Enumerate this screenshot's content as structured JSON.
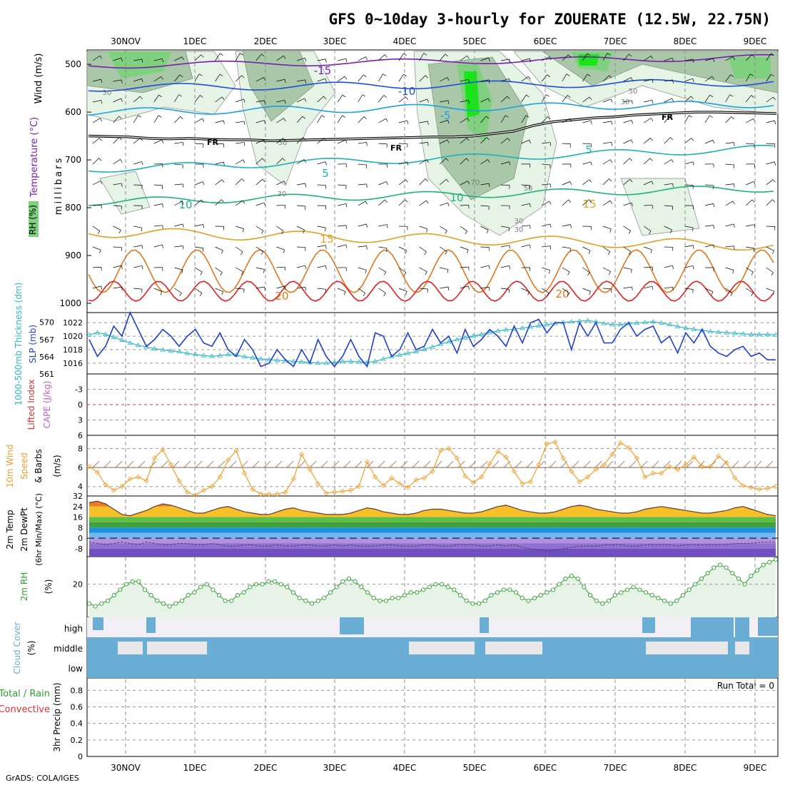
{
  "title": "GFS 0~10day 3-hourly for ZOUERATE (12.5W, 22.75N)",
  "credit": "GrADS: COLA/IGES",
  "run_total_label": "Run Total = 0",
  "colors": {
    "temp_m15": "#7a1fb0",
    "temp_m10": "#1f4fd6",
    "temp_m5": "#1f9fe0",
    "temp_5": "#1fb0b8",
    "temp_10": "#1fb080",
    "temp_15": "#e0a020",
    "temp_20": "#e07820",
    "temp_25": "#e02020",
    "freezing": "#000000",
    "rh_light": "#e6f4e6",
    "rh_mid": "#a8c8a8",
    "rh_high": "#7fd07f",
    "rh_max": "#19e619",
    "slp": "#1f3fd0",
    "thickness": "#2fb8c8",
    "wind10m": "#f0a030",
    "temp_band_warm": "#f0a030",
    "dewpoint": "#8a6a9a",
    "rh2m": "#2f9f2f",
    "cloud": "#6aaed6",
    "cloud_bg": "#e8e8e8"
  },
  "chart_data": [
    {
      "panel": "upper-air",
      "type": "heatmap",
      "x_tick_labels": [
        "30NOV",
        "1DEC",
        "2DEC",
        "3DEC",
        "4DEC",
        "5DEC",
        "6DEC",
        "7DEC",
        "8DEC",
        "9DEC"
      ],
      "ylabel": [
        "Wind (m/s)",
        "Temperature (°C)",
        "RH (%)",
        "millibars"
      ],
      "y_ticks": [
        500,
        600,
        700,
        800,
        900,
        1000
      ],
      "ylim": [
        1000,
        470
      ],
      "temperature_contour_labels": [
        "-15",
        "-10",
        "-5",
        "FR",
        "FR",
        "FR",
        "5",
        "5",
        "10",
        "10",
        "15",
        "15",
        "20",
        "20"
      ],
      "rh_contour_labels": [
        "30",
        "30",
        "30",
        "30",
        "50",
        "50",
        "70",
        "30",
        "30"
      ],
      "freezing_level_mb": [
        650,
        651,
        652,
        655,
        656,
        655,
        657,
        658,
        658,
        660,
        659,
        658,
        657,
        656,
        655,
        654,
        653,
        652,
        652,
        650,
        645,
        640,
        628,
        620,
        616,
        612,
        610,
        606,
        604,
        602,
        600,
        600,
        601,
        602,
        603
      ]
    },
    {
      "panel": "slp-thickness",
      "type": "line",
      "ylabel_left": "1000-500mb Thickness (dm)",
      "ylabel_right": "SLP (mb)",
      "thickness_ticks": [
        "570",
        "567",
        "564",
        "561"
      ],
      "slp_ticks": [
        "1022",
        "1020",
        "1018",
        "1016"
      ],
      "series": [
        {
          "name": "SLP (mb)",
          "values": [
            1019.5,
            1017,
            1018.5,
            1021.5,
            1020,
            1023.5,
            1021,
            1018.5,
            1019.5,
            1021,
            1020,
            1018.5,
            1020,
            1021,
            1019,
            1018.5,
            1020.5,
            1018,
            1017,
            1019.5,
            1018,
            1015.5,
            1016,
            1018,
            1016.5,
            1015.5,
            1018,
            1016,
            1019.5,
            1017,
            1015.5,
            1017,
            1019.5,
            1017,
            1015.5,
            1020.5,
            1020,
            1017,
            1018,
            1020.5,
            1018,
            1018.5,
            1021,
            1019,
            1020,
            1017.5,
            1021,
            1018.5,
            1019.5,
            1021,
            1020,
            1018.5,
            1021.5,
            1019,
            1022,
            1022.5,
            1020.5,
            1022,
            1022,
            1018,
            1022,
            1020,
            1022,
            1019,
            1019,
            1021,
            1022,
            1020,
            1021,
            1021.5,
            1019,
            1020,
            1017.5,
            1020.5,
            1019,
            1021,
            1018.5,
            1017.5,
            1017,
            1018,
            1018.5,
            1017,
            1017.5,
            1016.5,
            1016.5
          ]
        },
        {
          "name": "1000-500mb Thickness (dm)",
          "values": [
            567.8,
            568.2,
            567.9,
            567.4,
            566.9,
            566.4,
            566.0,
            565.7,
            565.4,
            565.2,
            565.0,
            564.9,
            564.6,
            564.4,
            564.2,
            564.1,
            564.2,
            564.4,
            564.3,
            564.0,
            563.8,
            563.6,
            563.5,
            563.4,
            563.3,
            563.2,
            563.1,
            563.0,
            562.9,
            562.9,
            563.0,
            563.2,
            563.2,
            563.1,
            563.0,
            563.2,
            563.6,
            564.0,
            564.3,
            564.6,
            564.9,
            565.3,
            565.7,
            566.2,
            566.6,
            567.0,
            567.3,
            567.6,
            567.9,
            568.2,
            568.5,
            568.7,
            568.8,
            569.0,
            569.2,
            569.4,
            569.6,
            569.8,
            570.0,
            570.1,
            570.2,
            570.3,
            570.1,
            569.8,
            569.6,
            569.6,
            569.8,
            569.9,
            570.0,
            570.1,
            569.9,
            569.6,
            569.3,
            569.0,
            568.8,
            568.6,
            568.4,
            568.3,
            568.2,
            568.1,
            568.0,
            567.9,
            567.9,
            567.9,
            567.8
          ]
        }
      ],
      "thickness_ylim": [
        561,
        571.7
      ],
      "slp_ylim": [
        1014.4,
        1023.5
      ]
    },
    {
      "panel": "stability",
      "type": "line",
      "ylabel_left": "Lifted Index",
      "ylabel_right": "CAPE (J/kg)",
      "y_ticks": [
        "-3",
        "0",
        "3",
        "6"
      ],
      "ylim": [
        -6,
        6
      ],
      "series": [
        {
          "name": "Lifted Index",
          "values": []
        }
      ]
    },
    {
      "panel": "wind10m",
      "type": "line",
      "ylabel": [
        "10m Wind",
        "Speed",
        "& Barbs",
        "(m/s)"
      ],
      "y_ticks": [
        "4",
        "6",
        "8"
      ],
      "ylim": [
        3,
        9.4
      ],
      "series": [
        {
          "name": "10m Wind Speed",
          "values": [
            6.1,
            5.5,
            4.2,
            3.6,
            4.0,
            4.8,
            5.0,
            4.6,
            7.0,
            7.9,
            6.3,
            4.6,
            3.4,
            3.1,
            3.6,
            4.0,
            5.0,
            6.8,
            7.8,
            5.4,
            3.7,
            3.2,
            3.2,
            3.2,
            3.4,
            4.8,
            7.4,
            5.8,
            4.3,
            3.3,
            3.4,
            3.5,
            3.6,
            4.0,
            6.6,
            5.0,
            4.1,
            4.9,
            4.3,
            3.9,
            4.7,
            4.9,
            5.6,
            7.8,
            8.0,
            7.0,
            5.1,
            4.4,
            5.0,
            6.4,
            7.7,
            7.1,
            5.6,
            4.3,
            4.5,
            6.3,
            8.5,
            8.7,
            7.0,
            5.6,
            4.5,
            5.0,
            5.8,
            6.3,
            7.4,
            8.6,
            8.1,
            7.0,
            5.0,
            5.4,
            5.4,
            6.1,
            5.8,
            6.3,
            7.1,
            6.1,
            6.1,
            7.2,
            6.5,
            4.9,
            4.1,
            3.9,
            3.7,
            3.8,
            4.0
          ]
        }
      ]
    },
    {
      "panel": "temp2m",
      "type": "area",
      "ylabel": [
        "2m Temp",
        "2m DewPt",
        "(6hr Min/Max) (°C)"
      ],
      "y_ticks": [
        "32",
        "24",
        "16",
        "8",
        "0",
        "-8"
      ],
      "ylim": [
        -14,
        32
      ],
      "series": [
        {
          "name": "2m Temp",
          "values": [
            27,
            28,
            26,
            22,
            18,
            17,
            19,
            21,
            24,
            26,
            25,
            23,
            21,
            19,
            19,
            21,
            23,
            24,
            22,
            20,
            19,
            18,
            18,
            20,
            22,
            23,
            21,
            20,
            19,
            18,
            18,
            18,
            19,
            21,
            23,
            22,
            20,
            19,
            18,
            18,
            19,
            21,
            22,
            22,
            21,
            20,
            19,
            19,
            20,
            22,
            24,
            25,
            23,
            21,
            20,
            19,
            19,
            20,
            22,
            24,
            25,
            24,
            22,
            21,
            20,
            19,
            19,
            20,
            22,
            23,
            24,
            23,
            22,
            21,
            20,
            19,
            19,
            20,
            21,
            23,
            24,
            22,
            20,
            18,
            17
          ]
        },
        {
          "name": "2m DewPt",
          "values": [
            -3,
            -4,
            -5,
            -4,
            -3,
            -4,
            -5,
            -3,
            -4,
            -5,
            -5,
            -4,
            -4,
            -5,
            -5,
            -4,
            -5,
            -6,
            -6,
            -5,
            -5,
            -6,
            -6,
            -5,
            -6,
            -6,
            -5,
            -5,
            -6,
            -6,
            -5,
            -6,
            -5,
            -6,
            -6,
            -6,
            -5,
            -5,
            -6,
            -6,
            -6,
            -5,
            -5,
            -6,
            -6,
            -5,
            -5,
            -5,
            -6,
            -6,
            -5,
            -6,
            -5,
            -7,
            -8,
            -9,
            -10,
            -9,
            -8,
            -7,
            -6,
            -6,
            -6,
            -5,
            -5,
            -5,
            -6,
            -6,
            -5,
            -5,
            -5,
            -5,
            -6,
            -5,
            -5,
            -5,
            -5,
            -5,
            -5,
            -4,
            -4,
            -4,
            -3,
            -3,
            -3
          ]
        }
      ]
    },
    {
      "panel": "rh2m",
      "type": "line",
      "ylabel": [
        "2m RH",
        "(%)"
      ],
      "y_ticks": [
        "20"
      ],
      "ylim": [
        8,
        30
      ],
      "series": [
        {
          "name": "2m RH",
          "values": [
            13,
            12,
            13,
            14,
            16,
            18,
            20,
            21,
            21,
            18,
            16,
            14,
            13,
            12,
            13,
            14,
            16,
            17,
            19,
            20,
            18,
            16,
            14,
            14,
            16,
            17,
            19,
            20,
            20,
            21,
            21,
            20,
            19,
            17,
            15,
            14,
            13,
            14,
            15,
            17,
            19,
            21,
            22,
            21,
            19,
            17,
            15,
            14,
            14,
            15,
            15,
            16,
            17,
            17,
            18,
            19,
            20,
            20,
            19,
            18,
            16,
            14,
            13,
            13,
            14,
            16,
            17,
            18,
            18,
            17,
            15,
            14,
            15,
            16,
            17,
            18,
            20,
            22,
            23,
            22,
            19,
            16,
            14,
            13,
            14,
            16,
            17,
            18,
            19,
            18,
            17,
            16,
            15,
            14,
            13,
            14,
            16,
            18,
            20,
            22,
            24,
            26,
            27,
            26,
            24,
            22,
            20,
            23,
            25,
            27,
            28,
            29
          ]
        }
      ]
    },
    {
      "panel": "cloud-cover",
      "type": "heatmap",
      "ylabel": [
        "Cloud Cover",
        "(%)"
      ],
      "row_labels": [
        "high",
        "middle",
        "low"
      ]
    },
    {
      "panel": "precip",
      "type": "bar",
      "ylabel_left": [
        "Total / Rain",
        "Convective"
      ],
      "ylabel_right": [
        "3hr Precip (mm)"
      ],
      "y_ticks": [
        "0",
        "0.2",
        "0.4",
        "0.6",
        "0.8"
      ],
      "ylim": [
        0,
        0.95
      ],
      "series": [
        {
          "name": "3hr Precip",
          "values": []
        }
      ]
    }
  ]
}
